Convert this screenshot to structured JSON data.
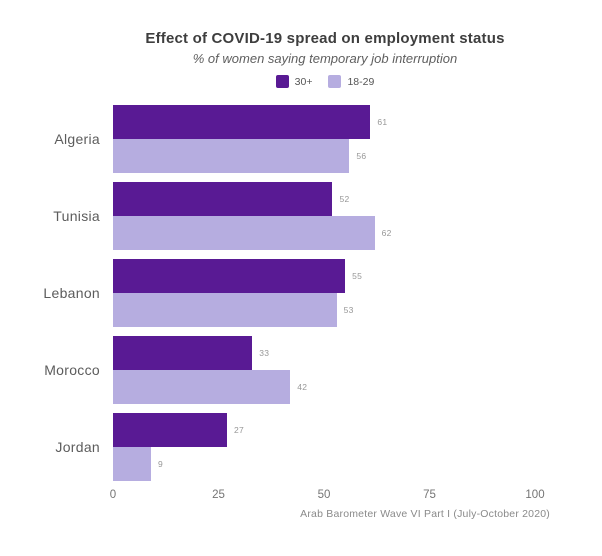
{
  "title": "Effect of COVID-19 spread on employment status",
  "subtitle": "% of women saying temporary job interruption",
  "source": "Arab Barometer Wave VI Part I (July-October 2020)",
  "colors": {
    "series_30plus": "#591a94",
    "series_18_29": "#b6ade0",
    "title_text": "#3e3e3e",
    "value_label_text": "#979797",
    "background": "#ffffff"
  },
  "chart_data": {
    "type": "bar",
    "orientation": "horizontal",
    "title": "Effect of COVID-19 spread on employment status",
    "subtitle": "% of women saying temporary job interruption",
    "categories": [
      "Algeria",
      "Tunisia",
      "Lebanon",
      "Morocco",
      "Jordan"
    ],
    "series": [
      {
        "name": "30+",
        "color": "#591a94",
        "values": [
          61,
          52,
          55,
          33,
          27
        ]
      },
      {
        "name": "18-29",
        "color": "#b6ade0",
        "values": [
          56,
          62,
          53,
          42,
          9
        ]
      }
    ],
    "xlabel": "",
    "ylabel": "",
    "xlim": [
      0,
      100
    ],
    "x_ticks": [
      0,
      25,
      50,
      75,
      100
    ],
    "grid": false,
    "legend_position": "top-center",
    "value_labels": true,
    "source_note": "Arab Barometer Wave VI Part I (July-October 2020)"
  }
}
